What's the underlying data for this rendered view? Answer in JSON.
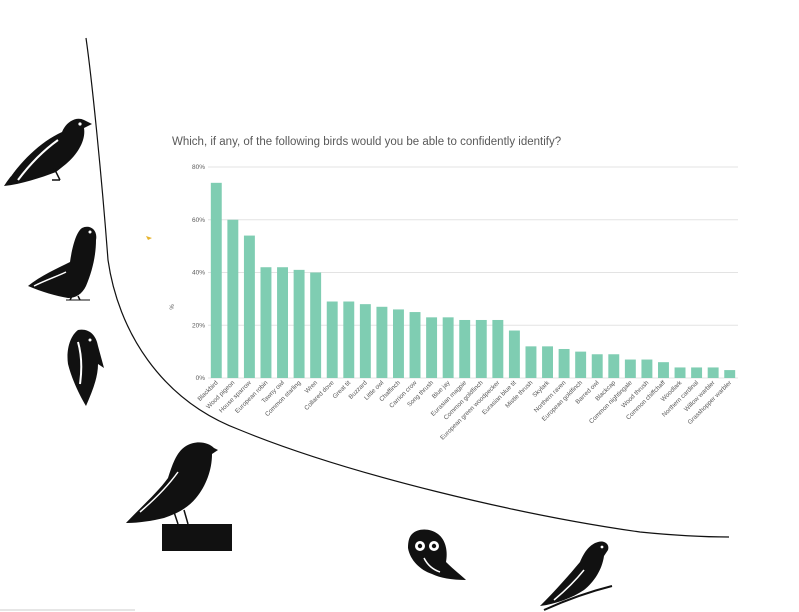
{
  "chart_data": {
    "type": "bar",
    "title": "Which, if any, of the following birds would you be able to confidently identify?",
    "ylabel": "%",
    "xlabel": "",
    "ylim": [
      0,
      80
    ],
    "yticks": [
      "0%",
      "20%",
      "40%",
      "60%",
      "80%"
    ],
    "grid": true,
    "legend": "none",
    "bar_color": "#7fcdb2",
    "categories": [
      "Blackbird",
      "Wood pigeon",
      "House sparrow",
      "European robin",
      "Tawny owl",
      "Common starling",
      "Wren",
      "Collared dove",
      "Great tit",
      "Buzzard",
      "Little owl",
      "Chaffinch",
      "Carrion crow",
      "Song thrush",
      "Blue jay",
      "Eurasian magpie",
      "Common goldfinch",
      "European green woodpecker",
      "Eurasian blue tit",
      "Mistle thrush",
      "Skylark",
      "Northern raven",
      "European goldfinch",
      "Barred owl",
      "Blackcap",
      "Common nightingale",
      "Wood thrush",
      "Common chiffchaff",
      "Woodlark",
      "Northern cardinal",
      "Willow warbler",
      "Grasshopper warbler"
    ],
    "values": [
      74,
      60,
      54,
      42,
      42,
      41,
      40,
      29,
      29,
      28,
      27,
      26,
      25,
      23,
      23,
      22,
      22,
      22,
      18,
      12,
      12,
      11,
      10,
      9,
      9,
      7,
      7,
      6,
      4,
      4,
      4,
      3
    ]
  },
  "decorations": {
    "icons": [
      "blackbird-icon",
      "pigeon-icon",
      "woodpecker-icon",
      "perched-bird-icon",
      "owl-icon",
      "swallow-icon"
    ],
    "ink_color": "#111111"
  }
}
